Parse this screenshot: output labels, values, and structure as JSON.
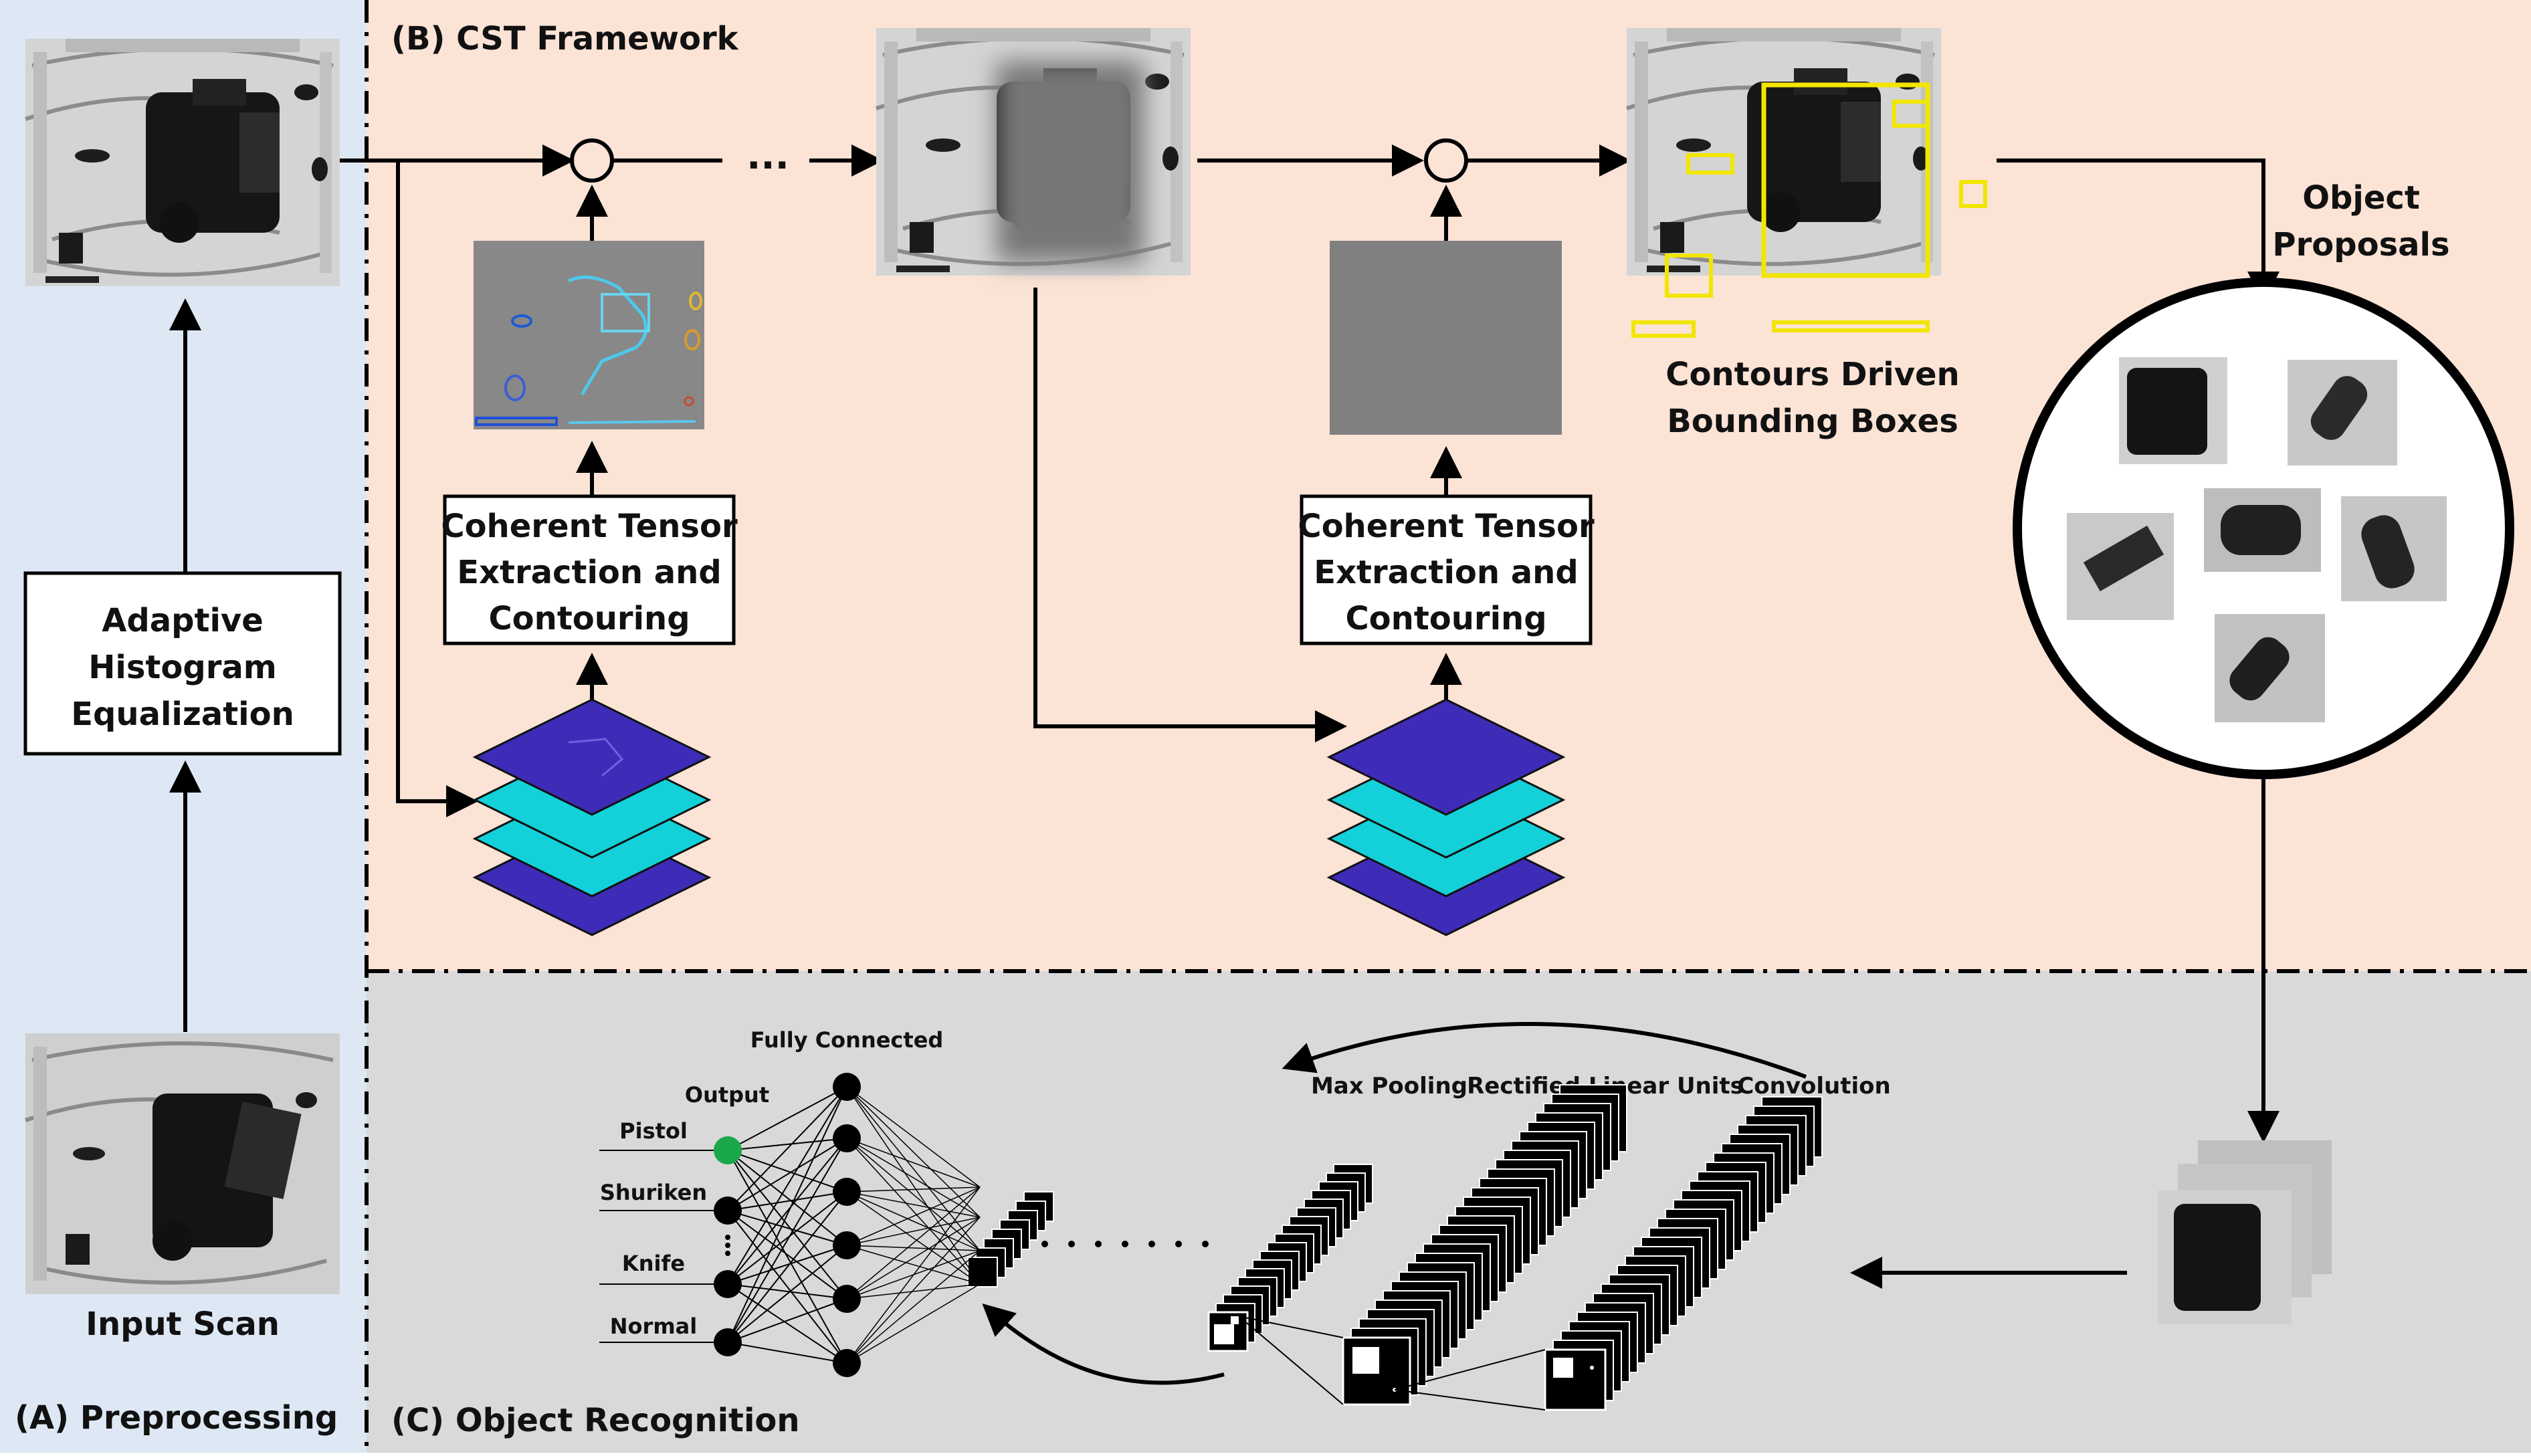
{
  "sections": {
    "preprocessing": "(A) Preprocessing",
    "cst": "(B) CST Framework",
    "recognition": "(C) Object Recognition"
  },
  "labels": {
    "input_scan": "Input Scan",
    "ahe_line1": "Adaptive",
    "ahe_line2": "Histogram",
    "ahe_line3": "Equalization",
    "cte_line1": "Coherent Tensor",
    "cte_line2": "Extraction and",
    "cte_line3": "Contouring",
    "cdb_line1": "Contours Driven",
    "cdb_line2": "Bounding Boxes",
    "op_line1": "Object",
    "op_line2": "Proposals",
    "ellipsis_top": "...",
    "fully_connected": "Fully Connected",
    "output": "Output",
    "max_pooling": "Max Pooling",
    "relu": "Rectified Linear Units",
    "convolution": "Convolution"
  },
  "classes": [
    "Pistol",
    "Shuriken",
    "Knife",
    "Normal"
  ],
  "colors": {
    "panel_a": "#dde8f4",
    "panel_b": "#fbe3d6",
    "panel_c": "#d9d9d9",
    "layer_purple": "#3e2bb8",
    "layer_cyan": "#14d0d8",
    "box_yellow": "#f2e600",
    "active_node": "#1aa84a"
  }
}
